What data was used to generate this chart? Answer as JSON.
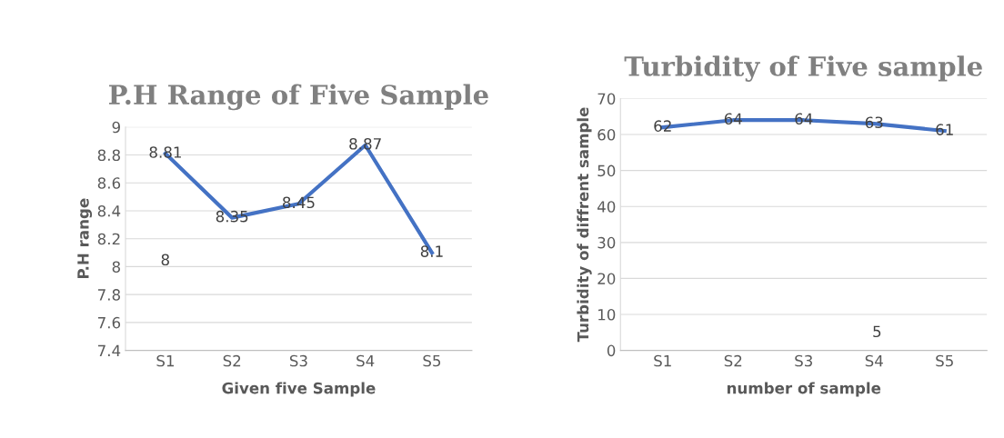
{
  "chart_data": [
    {
      "type": "line",
      "title": "P.H Range of Five Sample",
      "xlabel": "Given five Sample",
      "ylabel": "P.H range",
      "categories": [
        "S1",
        "S2",
        "S3",
        "S4",
        "S5"
      ],
      "series": [
        {
          "color": "#4472c4",
          "values": [
            8.81,
            8.35,
            8.45,
            8.87,
            8.1
          ]
        }
      ],
      "ylim": [
        7.4,
        9
      ],
      "yticks": [
        7.4,
        7.6,
        7.8,
        {
          "value": 8,
          "label": "8"
        },
        8.2,
        8.4,
        8.6,
        8.8,
        {
          "value": 9,
          "label": "9"
        }
      ],
      "grid": "y",
      "data_labels": true,
      "marker": "none",
      "line_style": "solid",
      "annotations": [
        "8"
      ]
    },
    {
      "type": "line",
      "title": "Turbidity of Five sample",
      "xlabel": "number of sample",
      "ylabel": "Turbidity of diffrent sample",
      "categories": [
        "S1",
        "S2",
        "S3",
        "S4",
        "S5"
      ],
      "series": [
        {
          "color": "#4472c4",
          "values": [
            62,
            64,
            64,
            63,
            61
          ]
        }
      ],
      "ylim": [
        0,
        70
      ],
      "yticks": [
        0,
        10,
        20,
        30,
        40,
        50,
        60,
        70
      ],
      "grid": "y",
      "data_labels": true,
      "marker": "none",
      "line_style": "solid",
      "annotations": [
        "5"
      ]
    }
  ]
}
